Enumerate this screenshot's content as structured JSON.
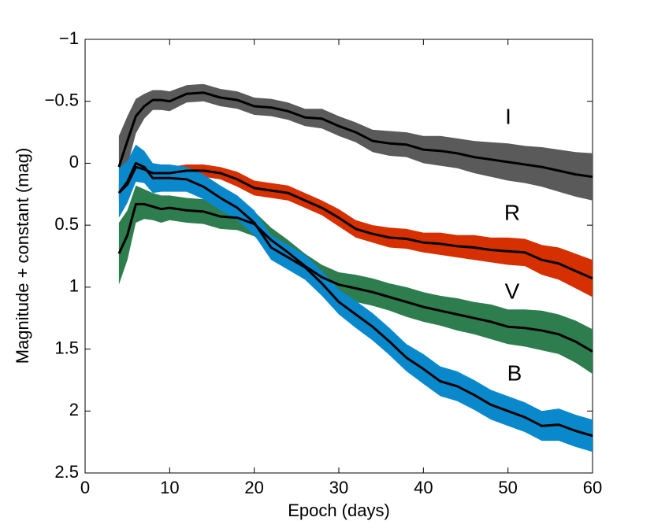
{
  "chart_data": {
    "type": "line",
    "x_label": "Epoch (days)",
    "y_label": "Magnitude + constant (mag)",
    "y_inverted": true,
    "xlim": [
      0,
      60
    ],
    "xticks": [
      0,
      10,
      20,
      30,
      40,
      50,
      60
    ],
    "ylim": [
      -1,
      2.5
    ],
    "yticks": [
      {
        "value": -1,
        "label": "−1"
      },
      {
        "value": -0.5,
        "label": "−0.5"
      },
      0,
      0.5,
      1,
      1.5,
      2,
      2.5
    ],
    "x": [
      4,
      5,
      6,
      7,
      8,
      9,
      10,
      12,
      14,
      16,
      18,
      20,
      22,
      24,
      26,
      28,
      30,
      32,
      34,
      36,
      38,
      40,
      42,
      44,
      46,
      48,
      50,
      52,
      54,
      56,
      58,
      60
    ],
    "series": [
      {
        "name": "I",
        "color": "#5a5a5a",
        "values": [
          0.03,
          -0.18,
          -0.38,
          -0.46,
          -0.51,
          -0.51,
          -0.5,
          -0.56,
          -0.57,
          -0.53,
          -0.51,
          -0.46,
          -0.45,
          -0.42,
          -0.37,
          -0.36,
          -0.3,
          -0.25,
          -0.18,
          -0.16,
          -0.15,
          -0.11,
          -0.1,
          -0.08,
          -0.05,
          -0.03,
          -0.01,
          0.01,
          0.03,
          0.06,
          0.09,
          0.11
        ],
        "errors": [
          0.25,
          0.2,
          0.14,
          0.1,
          0.08,
          0.08,
          0.08,
          0.07,
          0.07,
          0.07,
          0.07,
          0.07,
          0.07,
          0.07,
          0.07,
          0.08,
          0.08,
          0.08,
          0.09,
          0.1,
          0.1,
          0.11,
          0.12,
          0.12,
          0.13,
          0.14,
          0.15,
          0.15,
          0.16,
          0.17,
          0.18,
          0.19
        ]
      },
      {
        "name": "R",
        "color": "#d62f00",
        "values": [
          0.24,
          0.17,
          0.03,
          0.05,
          0.08,
          0.08,
          0.08,
          0.06,
          0.06,
          0.08,
          0.13,
          0.2,
          0.22,
          0.24,
          0.3,
          0.36,
          0.44,
          0.53,
          0.57,
          0.6,
          0.61,
          0.64,
          0.65,
          0.67,
          0.68,
          0.7,
          0.71,
          0.72,
          0.78,
          0.81,
          0.87,
          0.93
        ],
        "errors": [
          0.07,
          0.06,
          0.05,
          0.05,
          0.05,
          0.05,
          0.05,
          0.05,
          0.05,
          0.05,
          0.06,
          0.06,
          0.06,
          0.06,
          0.06,
          0.06,
          0.07,
          0.07,
          0.07,
          0.08,
          0.08,
          0.08,
          0.09,
          0.09,
          0.1,
          0.1,
          0.11,
          0.11,
          0.12,
          0.13,
          0.14,
          0.15
        ]
      },
      {
        "name": "V",
        "color": "#2e7d4f",
        "values": [
          0.73,
          0.58,
          0.33,
          0.33,
          0.35,
          0.37,
          0.36,
          0.38,
          0.39,
          0.43,
          0.44,
          0.49,
          0.62,
          0.72,
          0.83,
          0.92,
          0.98,
          1.01,
          1.04,
          1.08,
          1.12,
          1.16,
          1.19,
          1.22,
          1.25,
          1.28,
          1.32,
          1.33,
          1.35,
          1.38,
          1.44,
          1.52
        ],
        "errors": [
          0.25,
          0.2,
          0.15,
          0.12,
          0.11,
          0.11,
          0.1,
          0.1,
          0.1,
          0.1,
          0.1,
          0.1,
          0.1,
          0.1,
          0.1,
          0.1,
          0.1,
          0.11,
          0.11,
          0.11,
          0.12,
          0.12,
          0.12,
          0.13,
          0.13,
          0.14,
          0.14,
          0.15,
          0.16,
          0.16,
          0.17,
          0.18
        ]
      },
      {
        "name": "B",
        "color": "#0a88cc",
        "values": [
          0.24,
          0.15,
          0.0,
          0.03,
          0.12,
          0.12,
          0.12,
          0.13,
          0.19,
          0.28,
          0.36,
          0.48,
          0.68,
          0.76,
          0.84,
          0.97,
          1.12,
          1.22,
          1.32,
          1.44,
          1.57,
          1.66,
          1.76,
          1.8,
          1.87,
          1.95,
          2.0,
          2.05,
          2.12,
          2.11,
          2.16,
          2.2
        ],
        "errors": [
          0.2,
          0.17,
          0.15,
          0.13,
          0.12,
          0.11,
          0.11,
          0.1,
          0.1,
          0.1,
          0.1,
          0.1,
          0.1,
          0.1,
          0.1,
          0.1,
          0.1,
          0.11,
          0.11,
          0.11,
          0.11,
          0.12,
          0.12,
          0.12,
          0.12,
          0.12,
          0.12,
          0.12,
          0.12,
          0.13,
          0.13,
          0.13
        ]
      }
    ]
  }
}
